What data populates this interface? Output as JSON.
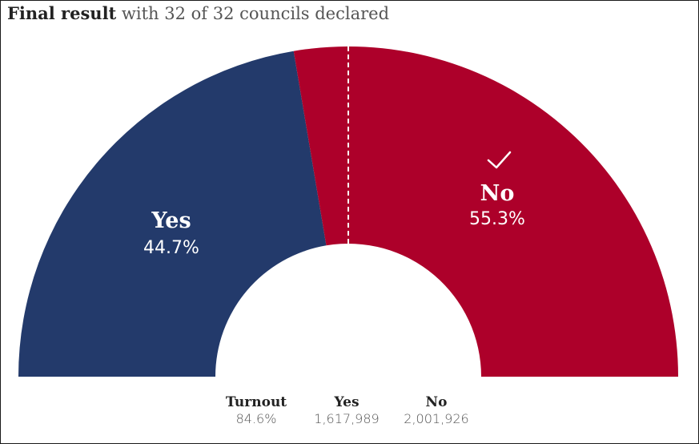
{
  "header": {
    "title_bold": "Final result",
    "title_rest": " with 32 of 32 councils declared"
  },
  "chart_data": {
    "type": "pie",
    "shape": "half-donut",
    "categories": [
      "Yes",
      "No"
    ],
    "values": [
      44.7,
      55.3
    ],
    "labels": [
      "44.7%",
      "55.3%"
    ],
    "winner": "No",
    "winner_mark": "check-icon",
    "threshold": 50,
    "colors": {
      "Yes": "#233a6b",
      "No": "#ad002a"
    }
  },
  "stats": [
    {
      "label": "Turnout",
      "value": "84.6%"
    },
    {
      "label": "Yes",
      "value": "1,617,989"
    },
    {
      "label": "No",
      "value": "2,001,926"
    }
  ]
}
